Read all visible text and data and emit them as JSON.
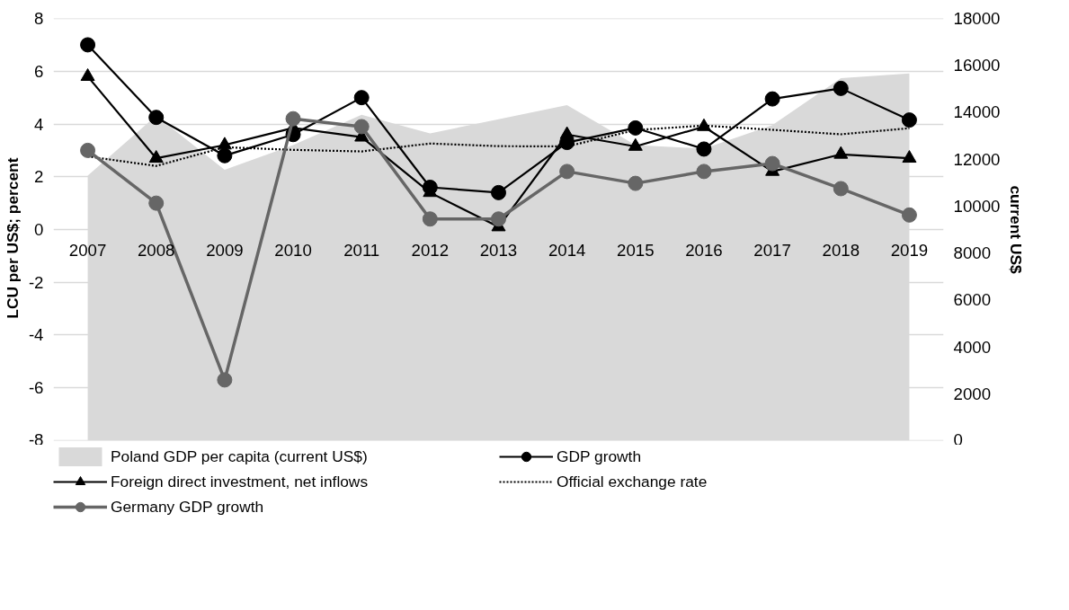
{
  "chart_data": {
    "type": "line",
    "ylabel": "LCU per US$;     percent",
    "y2label": "current US$",
    "categories": [
      "2007",
      "2008",
      "2009",
      "2010",
      "2011",
      "2012",
      "2013",
      "2014",
      "2015",
      "2016",
      "2017",
      "2018",
      "2019"
    ],
    "ylim": [
      -8,
      8
    ],
    "yticks": [
      -8,
      -6,
      -4,
      -2,
      0,
      2,
      4,
      6,
      8
    ],
    "y2lim": [
      0,
      18000
    ],
    "y2ticks": [
      0,
      2000,
      4000,
      6000,
      8000,
      10000,
      12000,
      14000,
      16000,
      18000
    ],
    "grid": "y",
    "legend": "bottom",
    "series": [
      {
        "name": "Poland GDP per capita (current US$)",
        "type": "area",
        "axis": "y2",
        "color": "#d9d9d9",
        "values": [
          11300,
          13850,
          11550,
          12600,
          13890,
          13100,
          13700,
          14300,
          12600,
          12450,
          13450,
          15450,
          15650
        ]
      },
      {
        "name": "GDP growth",
        "type": "line",
        "color": "#000000",
        "marker": "circle",
        "line_style": "solid",
        "values": [
          7.0,
          4.25,
          2.8,
          3.6,
          5.0,
          1.6,
          1.4,
          3.3,
          3.85,
          3.05,
          4.95,
          5.35,
          4.15
        ]
      },
      {
        "name": "Foreign direct investment, net inflows",
        "type": "line",
        "color": "#000000",
        "marker": "triangle",
        "line_style": "solid",
        "values": [
          5.8,
          2.7,
          3.2,
          3.85,
          3.5,
          1.4,
          0.1,
          3.6,
          3.15,
          3.9,
          2.2,
          2.85,
          2.7
        ]
      },
      {
        "name": "Official exchange rate",
        "type": "line",
        "color": "#000000",
        "marker": "none",
        "line_style": "dotted",
        "values": [
          2.77,
          2.41,
          3.12,
          3.02,
          2.96,
          3.26,
          3.16,
          3.15,
          3.77,
          3.94,
          3.78,
          3.61,
          3.84
        ]
      },
      {
        "name": "Germany GDP growth",
        "type": "line",
        "color": "#666666",
        "marker": "circle",
        "line_style": "solid",
        "values": [
          3.0,
          1.0,
          -5.7,
          4.2,
          3.9,
          0.4,
          0.4,
          2.2,
          1.75,
          2.2,
          2.5,
          1.55,
          0.55
        ]
      }
    ]
  }
}
